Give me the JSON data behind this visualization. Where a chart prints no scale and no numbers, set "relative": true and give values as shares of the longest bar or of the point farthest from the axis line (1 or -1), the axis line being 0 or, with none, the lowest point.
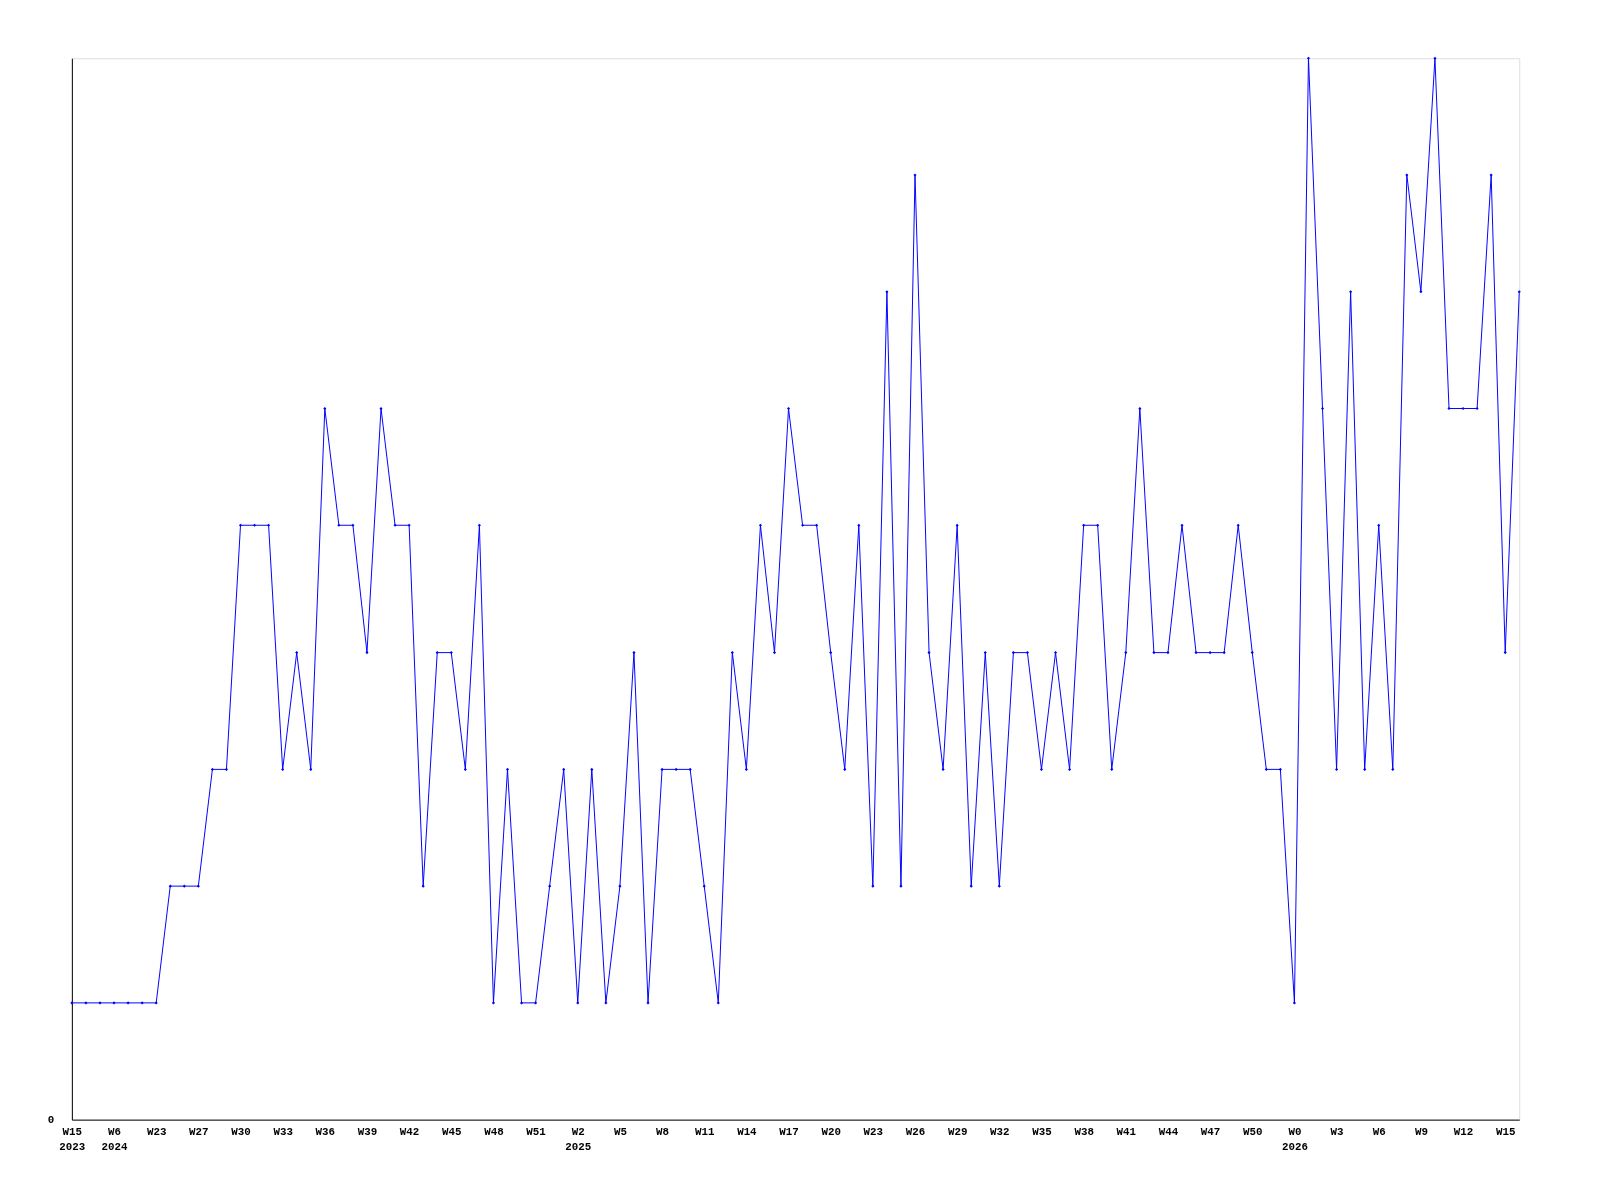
{
  "chart_data": {
    "type": "line",
    "relative": true,
    "grid": false,
    "marker": "diamond",
    "line_style": "solid",
    "annotations": [
      "0"
    ],
    "categories": [
      "W15\n2023",
      null,
      null,
      "W6\n2024",
      null,
      null,
      "W23",
      null,
      null,
      "W27",
      null,
      null,
      "W30",
      null,
      null,
      "W33",
      null,
      null,
      "W36",
      null,
      null,
      "W39",
      null,
      null,
      "W42",
      null,
      null,
      "W45",
      null,
      null,
      "W48",
      null,
      null,
      "W51",
      null,
      null,
      "W2\n2025",
      null,
      null,
      "W5",
      null,
      null,
      "W8",
      null,
      null,
      "W11",
      null,
      null,
      "W14",
      null,
      null,
      "W17",
      null,
      null,
      "W20",
      null,
      null,
      "W23",
      null,
      null,
      "W26",
      null,
      null,
      "W29",
      null,
      null,
      "W32",
      null,
      null,
      "W35",
      null,
      null,
      "W38",
      null,
      null,
      "W41",
      null,
      null,
      "W44",
      null,
      null,
      "W47",
      null,
      null,
      "W50",
      null,
      null,
      "W0\n2026",
      null,
      null,
      "W3",
      null,
      null,
      "W6",
      null,
      null,
      "W9",
      null,
      null,
      "W12",
      null,
      null,
      "W15",
      null
    ],
    "series": [
      {
        "color": "#0000ff",
        "values": [
          0.11,
          0.11,
          0.11,
          0.11,
          0.11,
          0.11,
          0.11,
          0.22,
          0.22,
          0.22,
          0.33,
          0.33,
          0.56,
          0.56,
          0.56,
          0.33,
          0.44,
          0.33,
          0.67,
          0.56,
          0.56,
          0.44,
          0.67,
          0.56,
          0.56,
          0.22,
          0.44,
          0.44,
          0.33,
          0.56,
          0.11,
          0.33,
          0.11,
          0.11,
          0.22,
          0.33,
          0.11,
          0.33,
          0.11,
          0.22,
          0.44,
          0.11,
          0.33,
          0.33,
          0.33,
          0.22,
          0.11,
          0.44,
          0.33,
          0.56,
          0.44,
          0.67,
          0.56,
          0.56,
          0.44,
          0.33,
          0.56,
          0.22,
          0.78,
          0.22,
          0.89,
          0.44,
          0.33,
          0.56,
          0.22,
          0.44,
          0.22,
          0.44,
          0.44,
          0.33,
          0.44,
          0.33,
          0.56,
          0.56,
          0.33,
          0.44,
          0.67,
          0.44,
          0.44,
          0.56,
          0.44,
          0.44,
          0.44,
          0.56,
          0.44,
          0.33,
          0.33,
          0.11,
          1,
          0.67,
          0.33,
          0.78,
          0.33,
          0.56,
          0.33,
          0.89,
          0.78,
          1,
          0.67,
          0.67,
          0.67,
          0.89,
          0.44,
          0.78
        ]
      }
    ]
  }
}
